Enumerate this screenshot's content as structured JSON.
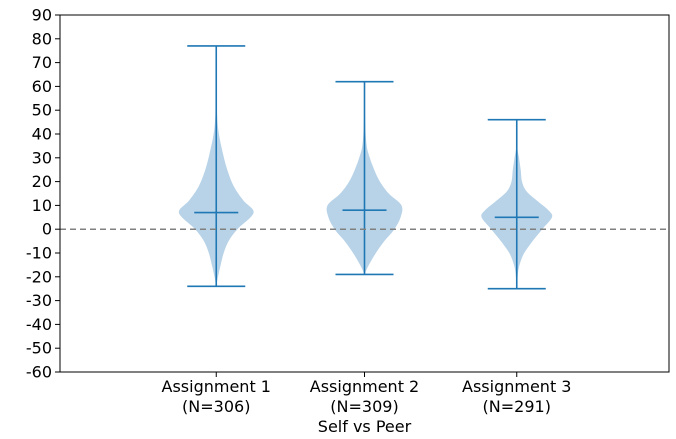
{
  "chart_data": {
    "type": "violin",
    "title": "",
    "xlabel": "Self vs Peer",
    "ylabel": "",
    "ylim": [
      -60,
      90
    ],
    "yticks": [
      -60,
      -50,
      -40,
      -30,
      -20,
      -10,
      0,
      10,
      20,
      30,
      40,
      50,
      60,
      70,
      80,
      90
    ],
    "grid": false,
    "reference_line": {
      "y": 0,
      "style": "dashed",
      "color": "#808080"
    },
    "colors": {
      "body": "#b8d3e8",
      "lines": "#1f77b4"
    },
    "categories": [
      {
        "label": "Assignment 1",
        "count_label": "(N=306)",
        "min": -24,
        "max": 77,
        "median": 7,
        "density": [
          [
            -24,
            0.0
          ],
          [
            -20,
            0.04
          ],
          [
            -15,
            0.1
          ],
          [
            -10,
            0.17
          ],
          [
            -5,
            0.28
          ],
          [
            0,
            0.48
          ],
          [
            5,
            0.78
          ],
          [
            8,
            0.84
          ],
          [
            12,
            0.62
          ],
          [
            18,
            0.4
          ],
          [
            25,
            0.25
          ],
          [
            32,
            0.15
          ],
          [
            40,
            0.06
          ],
          [
            48,
            0.02
          ],
          [
            60,
            0.01
          ],
          [
            77,
            0.0
          ]
        ]
      },
      {
        "label": "Assignment 2",
        "count_label": "(N=309)",
        "min": -19,
        "max": 62,
        "median": 8,
        "density": [
          [
            -19,
            0.0
          ],
          [
            -15,
            0.1
          ],
          [
            -10,
            0.26
          ],
          [
            -5,
            0.45
          ],
          [
            0,
            0.68
          ],
          [
            5,
            0.82
          ],
          [
            10,
            0.84
          ],
          [
            15,
            0.55
          ],
          [
            20,
            0.35
          ],
          [
            25,
            0.22
          ],
          [
            30,
            0.12
          ],
          [
            35,
            0.05
          ],
          [
            42,
            0.02
          ],
          [
            50,
            0.01
          ],
          [
            62,
            0.0
          ]
        ]
      },
      {
        "label": "Assignment 3",
        "count_label": "(N=291)",
        "min": -25,
        "max": 46,
        "median": 5,
        "density": [
          [
            -25,
            0.0
          ],
          [
            -18,
            0.03
          ],
          [
            -14,
            0.08
          ],
          [
            -10,
            0.17
          ],
          [
            -5,
            0.36
          ],
          [
            0,
            0.58
          ],
          [
            5,
            0.8
          ],
          [
            8,
            0.72
          ],
          [
            12,
            0.46
          ],
          [
            16,
            0.22
          ],
          [
            20,
            0.12
          ],
          [
            25,
            0.09
          ],
          [
            30,
            0.05
          ],
          [
            35,
            0.01
          ],
          [
            46,
            0.0
          ]
        ]
      }
    ]
  }
}
